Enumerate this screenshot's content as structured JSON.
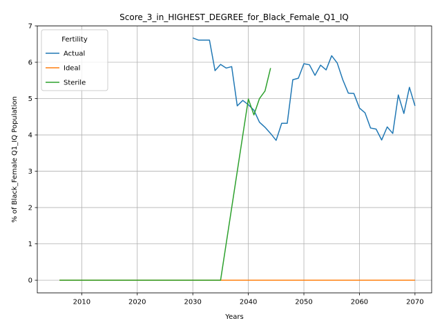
{
  "chart_data": {
    "type": "line",
    "title": "Score_3_in_HIGHEST_DEGREE_for_Black_Female_Q1_IQ",
    "xlabel": "Years",
    "ylabel": "% of Black_Female Q1_IQ Population",
    "xlim": [
      2002,
      2073
    ],
    "ylim": [
      -0.35,
      7.0
    ],
    "xticks": [
      2010,
      2020,
      2030,
      2040,
      2050,
      2060,
      2070
    ],
    "yticks": [
      0,
      1,
      2,
      3,
      4,
      5,
      6,
      7
    ],
    "grid": true,
    "legend": {
      "title": "Fertility",
      "position": "top-left"
    },
    "series": [
      {
        "name": "Actual",
        "color": "#1f77b4",
        "x": [
          2030,
          2031,
          2032,
          2033,
          2034,
          2035,
          2036,
          2037,
          2038,
          2039,
          2040,
          2041,
          2042,
          2043,
          2044,
          2045,
          2046,
          2047,
          2048,
          2049,
          2050,
          2051,
          2052,
          2053,
          2054,
          2055,
          2056,
          2057,
          2058,
          2059,
          2060,
          2061,
          2062,
          2063,
          2064,
          2065,
          2066,
          2067,
          2068,
          2069,
          2070
        ],
        "y": [
          6.67,
          6.61,
          6.61,
          6.61,
          5.77,
          5.94,
          5.84,
          5.88,
          4.8,
          4.95,
          4.83,
          4.68,
          4.35,
          4.21,
          4.04,
          3.85,
          4.32,
          4.32,
          5.52,
          5.56,
          5.96,
          5.93,
          5.64,
          5.92,
          5.79,
          6.18,
          5.98,
          5.52,
          5.15,
          5.14,
          4.74,
          4.61,
          4.19,
          4.16,
          3.86,
          4.22,
          4.04,
          5.1,
          4.59,
          5.31,
          4.8
        ]
      },
      {
        "name": "Ideal",
        "color": "#ff7f0e",
        "x": [
          2006,
          2070
        ],
        "y": [
          0,
          0
        ]
      },
      {
        "name": "Sterile",
        "color": "#2ca02c",
        "x": [
          2006,
          2035,
          2040,
          2041,
          2042,
          2043,
          2044
        ],
        "y": [
          0,
          0,
          4.99,
          4.55,
          5.0,
          5.21,
          5.84
        ]
      }
    ]
  }
}
